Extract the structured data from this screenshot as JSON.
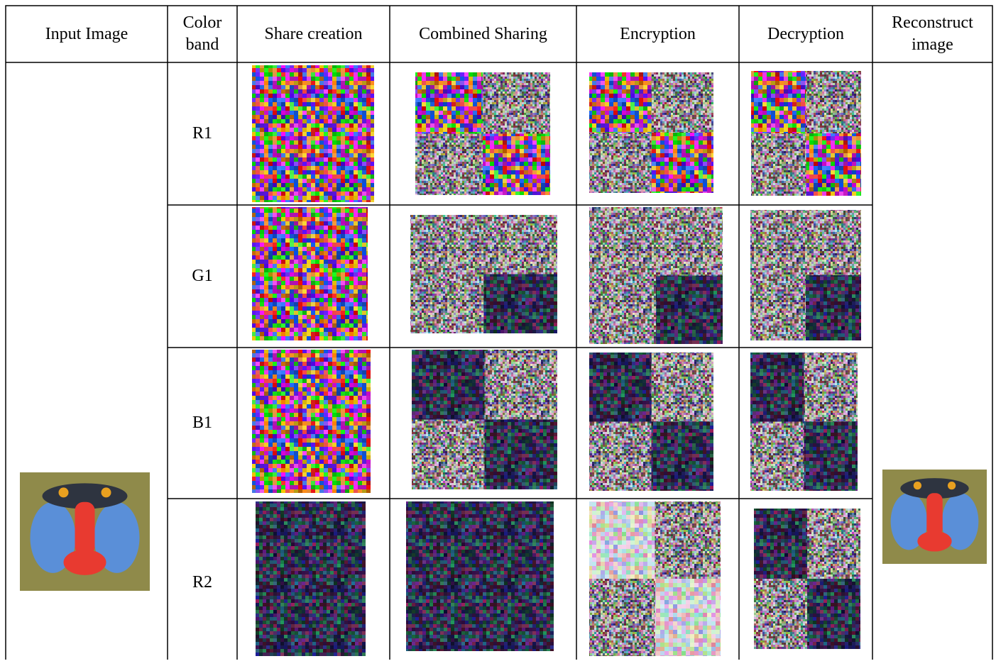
{
  "table": {
    "header": [
      "Input Image",
      "Color band",
      "Share creation",
      "Combined Sharing",
      "Encryption",
      "Decryption",
      "Reconstruct image"
    ],
    "rows": [
      [
        "R1"
      ],
      [
        "G1"
      ],
      [
        "B1"
      ],
      [
        "R2"
      ]
    ]
  }
}
